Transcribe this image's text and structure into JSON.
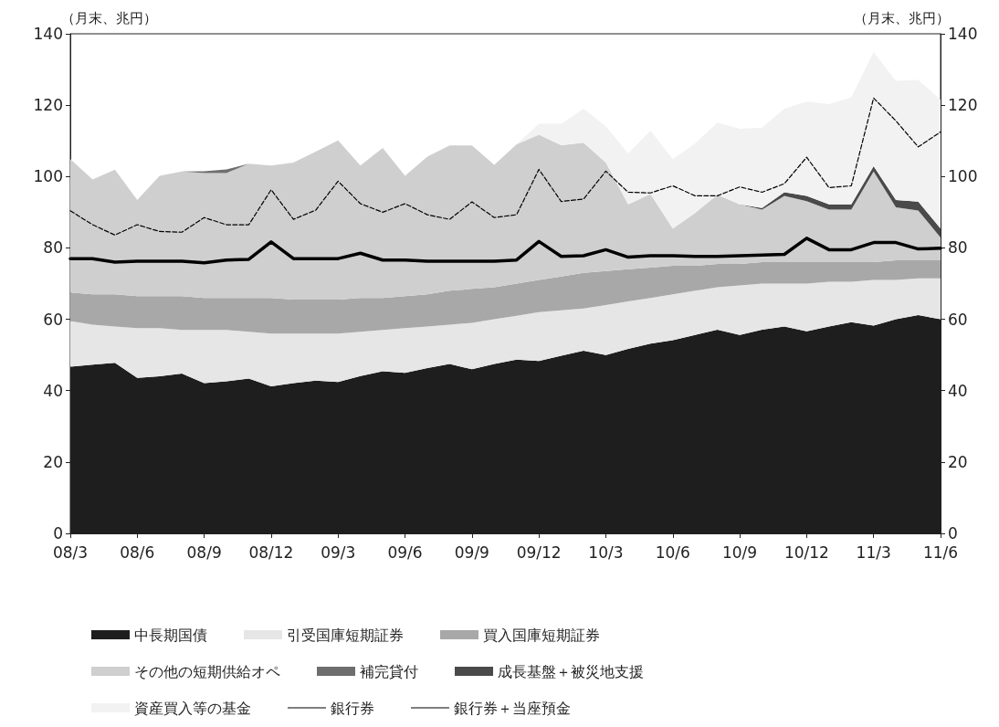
{
  "chart_data": {
    "type": "area",
    "stacked": true,
    "ylabel": "（月末、兆円）",
    "y2label": "（月末、兆円）",
    "categories": [
      "08/3",
      null,
      null,
      "08/6",
      null,
      null,
      "08/9",
      null,
      null,
      "08/12",
      null,
      null,
      "09/3",
      null,
      null,
      "09/6",
      null,
      null,
      "09/9",
      null,
      null,
      "09/12",
      null,
      null,
      "10/3",
      null,
      null,
      "10/6",
      null,
      null,
      "10/9",
      null,
      null,
      "10/12",
      null,
      null,
      "11/3",
      null,
      null,
      "11/6"
    ],
    "ylim": [
      0,
      140
    ],
    "yticks": [
      0,
      20,
      40,
      60,
      80,
      100,
      120,
      140
    ],
    "y2lim": [
      0,
      140
    ],
    "y2ticks": [
      0,
      20,
      40,
      60,
      80,
      100,
      120,
      140
    ],
    "legend": "bottom",
    "grid": false,
    "marker": "none",
    "series": [
      {
        "name": "中長期国債",
        "color": "#1e1e1e",
        "values": [
          46.7,
          47.3,
          47.8,
          43.6,
          44,
          44.8,
          42.1,
          42.6,
          43.4,
          41.2,
          42.1,
          42.8,
          42.4,
          44.1,
          45.4,
          45,
          46.3,
          47.5,
          46,
          47.5,
          48.7,
          48.3,
          49.8,
          51.2,
          50,
          51.7,
          53.2,
          54.1,
          55.6,
          57.1,
          55.6,
          57.1,
          58,
          56.6,
          58,
          59.2,
          58.2,
          60,
          61.2,
          60
        ]
      },
      {
        "name": "引受国庫短期証券",
        "color": "#e6e6e6",
        "values": [
          12.8,
          11.2,
          10.2,
          13.9,
          13.5,
          12.2,
          14.9,
          14.4,
          13.1,
          14.8,
          13.9,
          13.2,
          13.6,
          12.4,
          11.6,
          12.5,
          11.7,
          11,
          13,
          12.5,
          12.3,
          13.7,
          12.7,
          11.8,
          14,
          13.3,
          12.8,
          12.9,
          12.4,
          11.9,
          13.9,
          12.9,
          12,
          13.4,
          12.5,
          11.3,
          12.8,
          11,
          10.3,
          11.5
        ]
      },
      {
        "name": "買入国庫短期証券",
        "color": "#a8a8a8",
        "values": [
          8,
          8.5,
          9,
          9,
          9,
          9.5,
          9,
          9,
          9.5,
          10,
          9.5,
          9.5,
          9.5,
          9.5,
          9,
          9,
          9,
          9.5,
          9.5,
          9,
          9,
          9,
          9.5,
          10,
          9.5,
          9,
          8.5,
          8,
          7,
          6.5,
          6,
          6,
          6,
          6,
          5.5,
          5.5,
          5,
          5.5,
          5,
          5
        ]
      },
      {
        "name": "その他の短期供給オペ",
        "color": "#cfcfcf",
        "values": [
          37.4,
          32.2,
          34.9,
          26.9,
          33.7,
          34.9,
          35,
          35,
          37.6,
          37.1,
          38.4,
          41.5,
          44.6,
          37.1,
          42,
          33.7,
          38.6,
          40.7,
          40.2,
          34.3,
          39,
          40.7,
          36.8,
          36.5,
          30.4,
          18.2,
          20.6,
          10.4,
          14.8,
          19.4,
          16.7,
          14.7,
          18.6,
          17.1,
          14.7,
          14.7,
          25.4,
          14.9,
          14,
          6.4
        ]
      },
      {
        "name": "補完貸付",
        "color": "#6e6e6e",
        "values": [
          null,
          null,
          null,
          null,
          null,
          0,
          0.5,
          1,
          0,
          null,
          null,
          null,
          null,
          null,
          null,
          null,
          null,
          null,
          null,
          null,
          null,
          null,
          null,
          null,
          null,
          null,
          null,
          null,
          null,
          null,
          null,
          null,
          null,
          null,
          null,
          null,
          null,
          null,
          null,
          null
        ]
      },
      {
        "name": "成長基盤＋被災地支援",
        "color": "#4a4a4a",
        "values": [
          null,
          null,
          null,
          null,
          null,
          null,
          null,
          null,
          null,
          null,
          null,
          null,
          null,
          null,
          null,
          null,
          null,
          null,
          null,
          null,
          null,
          null,
          null,
          null,
          null,
          null,
          null,
          null,
          null,
          null,
          0,
          0.5,
          1,
          1.5,
          1.5,
          1.5,
          1.5,
          2,
          2.5,
          2.5
        ]
      },
      {
        "name": "資産買入等の基金",
        "color": "#f2f2f2",
        "values": [
          null,
          null,
          null,
          null,
          null,
          null,
          null,
          null,
          null,
          null,
          null,
          null,
          null,
          null,
          null,
          null,
          null,
          null,
          null,
          null,
          0,
          3.1,
          6,
          9.5,
          10.2,
          14.3,
          17.8,
          19.5,
          19.5,
          20.2,
          21.2,
          22.5,
          23.4,
          26.4,
          28.1,
          30,
          32,
          33.4,
          34.1,
          36.1
        ]
      },
      {
        "name": "銀行券",
        "type": "line",
        "color": "#000000",
        "line_style": "solid",
        "values": [
          77,
          77,
          76,
          76.3,
          76.3,
          76.3,
          75.8,
          76.6,
          76.8,
          81.7,
          77,
          77,
          77,
          78.5,
          76.6,
          76.6,
          76.3,
          76.3,
          76.3,
          76.3,
          76.6,
          81.8,
          77.6,
          77.8,
          79.5,
          77.4,
          77.8,
          77.8,
          77.6,
          77.6,
          77.8,
          78,
          78.2,
          82.7,
          79.5,
          79.5,
          81.5,
          81.5,
          79.7,
          79.9
        ]
      },
      {
        "name": "銀行券＋当座預金",
        "type": "line",
        "color": "#000000",
        "line_style": "dashed",
        "values": [
          90.4,
          86.5,
          83.6,
          86.5,
          84.6,
          84.4,
          88.5,
          86.5,
          86.5,
          96.3,
          88,
          90.6,
          98.7,
          92.4,
          90,
          92.4,
          89.3,
          88,
          92.9,
          88.5,
          89.3,
          102,
          93,
          93.7,
          101.5,
          95.6,
          95.4,
          97.4,
          94.6,
          94.6,
          97.1,
          95.6,
          98,
          105.4,
          96.9,
          97.4,
          122,
          115.6,
          108.3,
          112.5
        ]
      }
    ]
  }
}
